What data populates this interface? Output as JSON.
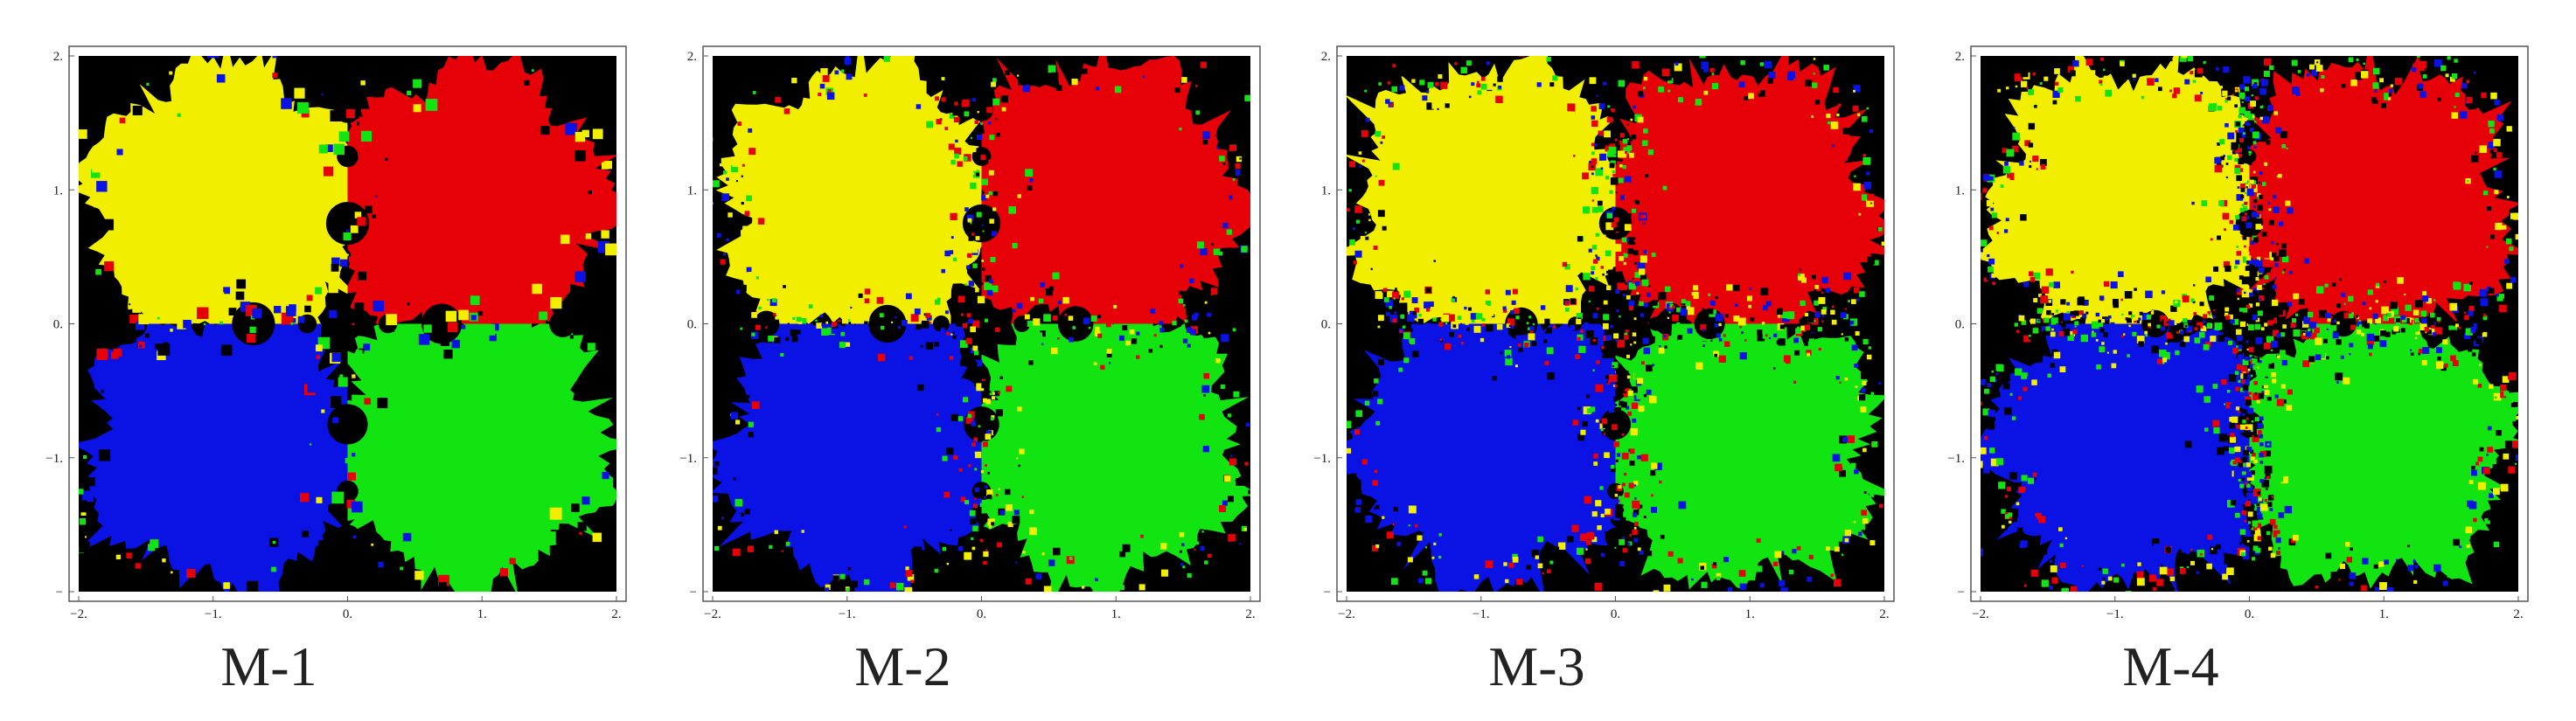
{
  "panels": [
    {
      "title": "M-1",
      "xticks": [
        {
          "value": -2,
          "label": "−2."
        },
        {
          "value": -1,
          "label": "−1."
        },
        {
          "value": 0,
          "label": "0."
        },
        {
          "value": 1,
          "label": "1."
        },
        {
          "value": 2,
          "label": "2."
        }
      ],
      "yticks": [
        {
          "value": 2,
          "label": "2."
        },
        {
          "value": 1,
          "label": "1."
        },
        {
          "value": 0,
          "label": "0."
        },
        {
          "value": -1,
          "label": "−1."
        },
        {
          "value": -2,
          "label": "−"
        }
      ]
    },
    {
      "title": "M-2",
      "xticks": [
        {
          "value": -2,
          "label": "−2."
        },
        {
          "value": -1,
          "label": "−1."
        },
        {
          "value": 0,
          "label": "0."
        },
        {
          "value": 1,
          "label": "1."
        },
        {
          "value": 2,
          "label": "2."
        }
      ],
      "yticks": [
        {
          "value": 2,
          "label": "2."
        },
        {
          "value": 1,
          "label": "1."
        },
        {
          "value": 0,
          "label": "0."
        },
        {
          "value": -1,
          "label": "−1."
        },
        {
          "value": -2,
          "label": "−"
        }
      ]
    },
    {
      "title": "M-3",
      "xticks": [
        {
          "value": -2,
          "label": "−2."
        },
        {
          "value": -1,
          "label": "−1."
        },
        {
          "value": 0,
          "label": "0."
        },
        {
          "value": 1,
          "label": "1."
        },
        {
          "value": 2,
          "label": "2."
        }
      ],
      "yticks": [
        {
          "value": 2,
          "label": "2."
        },
        {
          "value": 1,
          "label": "1."
        },
        {
          "value": 0,
          "label": "0."
        },
        {
          "value": -1,
          "label": "−1."
        },
        {
          "value": -2,
          "label": "−"
        }
      ]
    },
    {
      "title": "M-4",
      "xticks": [
        {
          "value": -2,
          "label": "−2."
        },
        {
          "value": -1,
          "label": "−1."
        },
        {
          "value": 0,
          "label": "0."
        },
        {
          "value": 1,
          "label": "1."
        },
        {
          "value": 2,
          "label": "2."
        }
      ],
      "yticks": [
        {
          "value": 2,
          "label": "2."
        },
        {
          "value": 1,
          "label": "1."
        },
        {
          "value": 0,
          "label": "0."
        },
        {
          "value": -1,
          "label": "−1."
        },
        {
          "value": -2,
          "label": "−"
        }
      ]
    }
  ]
}
